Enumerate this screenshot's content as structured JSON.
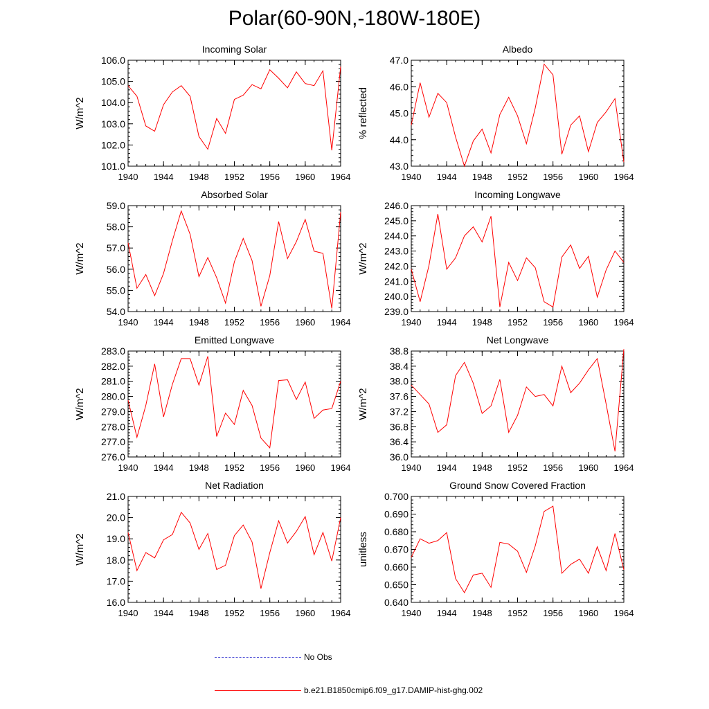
{
  "title": "Polar(60-90N,-180W-180E)",
  "colors": {
    "series": "#ff0000",
    "obs": "#5a5ad8",
    "axis": "#000000"
  },
  "legend": [
    {
      "label": "No Obs",
      "style": "dashed",
      "color": "#5a5ad8"
    },
    {
      "label": "b.e21.B1850cmip6.f09_g17.DAMIP-hist-ghg.002",
      "style": "solid",
      "color": "#ff0000"
    }
  ],
  "chart_data": [
    {
      "type": "line",
      "title": "Incoming Solar",
      "xlabel": "",
      "ylabel": "W/m^2",
      "xlim": [
        1940,
        1964
      ],
      "ylim": [
        101.0,
        106.0
      ],
      "xticks": [
        "1940",
        "1944",
        "1948",
        "1952",
        "1956",
        "1960",
        "1964"
      ],
      "yticks": [
        "101.0",
        "102.0",
        "103.0",
        "104.0",
        "105.0",
        "106.0"
      ],
      "x": [
        1940,
        1941,
        1942,
        1943,
        1944,
        1945,
        1946,
        1947,
        1948,
        1949,
        1950,
        1951,
        1952,
        1953,
        1954,
        1955,
        1956,
        1957,
        1958,
        1959,
        1960,
        1961,
        1962,
        1963,
        1964
      ],
      "series": [
        {
          "values": [
            104.8,
            104.3,
            102.9,
            102.65,
            103.9,
            104.5,
            104.8,
            104.3,
            102.4,
            101.8,
            103.25,
            102.55,
            104.15,
            104.35,
            104.85,
            104.65,
            105.55,
            105.15,
            104.7,
            105.45,
            104.9,
            104.8,
            105.5,
            101.75,
            105.7
          ]
        }
      ]
    },
    {
      "type": "line",
      "title": "Albedo",
      "xlabel": "",
      "ylabel": "% reflected",
      "xlim": [
        1940,
        1964
      ],
      "ylim": [
        43.0,
        47.0
      ],
      "xticks": [
        "1940",
        "1944",
        "1948",
        "1952",
        "1956",
        "1960",
        "1964"
      ],
      "yticks": [
        "43.0",
        "44.0",
        "45.0",
        "46.0",
        "47.0"
      ],
      "x": [
        1940,
        1941,
        1942,
        1943,
        1944,
        1945,
        1946,
        1947,
        1948,
        1949,
        1950,
        1951,
        1952,
        1953,
        1954,
        1955,
        1956,
        1957,
        1958,
        1959,
        1960,
        1961,
        1962,
        1963,
        1964
      ],
      "series": [
        {
          "values": [
            44.55,
            46.15,
            44.85,
            45.75,
            45.4,
            44.1,
            43.0,
            43.95,
            44.4,
            43.5,
            44.95,
            45.6,
            44.9,
            43.85,
            45.2,
            46.85,
            46.45,
            43.45,
            44.55,
            44.9,
            43.55,
            44.65,
            45.05,
            45.55,
            43.15
          ]
        }
      ]
    },
    {
      "type": "line",
      "title": "Absorbed Solar",
      "xlabel": "",
      "ylabel": "W/m^2",
      "xlim": [
        1940,
        1964
      ],
      "ylim": [
        54.0,
        59.0
      ],
      "xticks": [
        "1940",
        "1944",
        "1948",
        "1952",
        "1956",
        "1960",
        "1964"
      ],
      "yticks": [
        "54.0",
        "55.0",
        "56.0",
        "57.0",
        "58.0",
        "59.0"
      ],
      "x": [
        1940,
        1941,
        1942,
        1943,
        1944,
        1945,
        1946,
        1947,
        1948,
        1949,
        1950,
        1951,
        1952,
        1953,
        1954,
        1955,
        1956,
        1957,
        1958,
        1959,
        1960,
        1961,
        1962,
        1963,
        1964
      ],
      "series": [
        {
          "values": [
            57.25,
            55.1,
            55.75,
            54.75,
            55.8,
            57.35,
            58.75,
            57.65,
            55.65,
            56.55,
            55.6,
            54.4,
            56.35,
            57.45,
            56.4,
            54.25,
            55.7,
            58.25,
            56.5,
            57.3,
            58.35,
            56.85,
            56.75,
            54.15,
            58.7
          ]
        }
      ]
    },
    {
      "type": "line",
      "title": "Incoming Longwave",
      "xlabel": "",
      "ylabel": "W/m^2",
      "xlim": [
        1940,
        1964
      ],
      "ylim": [
        239.0,
        246.0
      ],
      "xticks": [
        "1940",
        "1944",
        "1948",
        "1952",
        "1956",
        "1960",
        "1964"
      ],
      "yticks": [
        "239.0",
        "240.0",
        "241.0",
        "242.0",
        "243.0",
        "244.0",
        "245.0",
        "246.0"
      ],
      "x": [
        1940,
        1941,
        1942,
        1943,
        1944,
        1945,
        1946,
        1947,
        1948,
        1949,
        1950,
        1951,
        1952,
        1953,
        1954,
        1955,
        1956,
        1957,
        1958,
        1959,
        1960,
        1961,
        1962,
        1963,
        1964
      ],
      "series": [
        {
          "values": [
            241.8,
            239.65,
            242.05,
            245.45,
            241.8,
            242.55,
            244.0,
            244.6,
            243.6,
            245.3,
            239.3,
            242.25,
            241.05,
            242.55,
            241.9,
            239.65,
            239.3,
            242.6,
            243.4,
            241.85,
            242.65,
            239.95,
            241.75,
            243.0,
            242.25
          ]
        }
      ]
    },
    {
      "type": "line",
      "title": "Emitted Longwave",
      "xlabel": "",
      "ylabel": "W/m^2",
      "xlim": [
        1940,
        1964
      ],
      "ylim": [
        276.0,
        283.0
      ],
      "xticks": [
        "1940",
        "1944",
        "1948",
        "1952",
        "1956",
        "1960",
        "1964"
      ],
      "yticks": [
        "276.0",
        "277.0",
        "278.0",
        "279.0",
        "280.0",
        "281.0",
        "282.0",
        "283.0"
      ],
      "x": [
        1940,
        1941,
        1942,
        1943,
        1944,
        1945,
        1946,
        1947,
        1948,
        1949,
        1950,
        1951,
        1952,
        1953,
        1954,
        1955,
        1956,
        1957,
        1958,
        1959,
        1960,
        1961,
        1962,
        1963,
        1964
      ],
      "series": [
        {
          "values": [
            279.75,
            277.3,
            279.4,
            282.15,
            278.65,
            280.8,
            282.5,
            282.5,
            280.75,
            282.65,
            277.35,
            278.9,
            278.15,
            280.4,
            279.4,
            277.25,
            276.6,
            281.05,
            281.1,
            279.8,
            280.95,
            278.55,
            279.1,
            279.2,
            281.0
          ]
        }
      ]
    },
    {
      "type": "line",
      "title": "Net Longwave",
      "xlabel": "",
      "ylabel": "W/m^2",
      "xlim": [
        1940,
        1964
      ],
      "ylim": [
        36.0,
        38.8
      ],
      "xticks": [
        "1940",
        "1944",
        "1948",
        "1952",
        "1956",
        "1960",
        "1964"
      ],
      "yticks": [
        "36.0",
        "36.4",
        "36.8",
        "37.2",
        "37.6",
        "38.0",
        "38.4",
        "38.8"
      ],
      "x": [
        1940,
        1941,
        1942,
        1943,
        1944,
        1945,
        1946,
        1947,
        1948,
        1949,
        1950,
        1951,
        1952,
        1953,
        1954,
        1955,
        1956,
        1957,
        1958,
        1959,
        1960,
        1961,
        1962,
        1963,
        1964
      ],
      "series": [
        {
          "values": [
            37.9,
            37.65,
            37.4,
            36.65,
            36.85,
            38.15,
            38.5,
            37.95,
            37.15,
            37.35,
            38.05,
            36.65,
            37.1,
            37.85,
            37.6,
            37.65,
            37.35,
            38.4,
            37.7,
            37.95,
            38.3,
            38.6,
            37.4,
            36.15,
            38.85
          ]
        }
      ]
    },
    {
      "type": "line",
      "title": "Net Radiation",
      "xlabel": "",
      "ylabel": "W/m^2",
      "xlim": [
        1940,
        1964
      ],
      "ylim": [
        16.0,
        21.0
      ],
      "xticks": [
        "1940",
        "1944",
        "1948",
        "1952",
        "1956",
        "1960",
        "1964"
      ],
      "yticks": [
        "16.0",
        "17.0",
        "18.0",
        "19.0",
        "20.0",
        "21.0"
      ],
      "x": [
        1940,
        1941,
        1942,
        1943,
        1944,
        1945,
        1946,
        1947,
        1948,
        1949,
        1950,
        1951,
        1952,
        1953,
        1954,
        1955,
        1956,
        1957,
        1958,
        1959,
        1960,
        1961,
        1962,
        1963,
        1964
      ],
      "series": [
        {
          "values": [
            19.3,
            17.5,
            18.35,
            18.1,
            18.95,
            19.2,
            20.25,
            19.75,
            18.5,
            19.25,
            17.55,
            17.75,
            19.15,
            19.65,
            18.85,
            16.65,
            18.35,
            19.85,
            18.8,
            19.35,
            20.05,
            18.25,
            19.3,
            17.95,
            20.0
          ]
        }
      ]
    },
    {
      "type": "line",
      "title": "Ground Snow Covered Fraction",
      "xlabel": "",
      "ylabel": "unitless",
      "xlim": [
        1940,
        1964
      ],
      "ylim": [
        0.64,
        0.7
      ],
      "xticks": [
        "1940",
        "1944",
        "1948",
        "1952",
        "1956",
        "1960",
        "1964"
      ],
      "yticks": [
        "0.640",
        "0.650",
        "0.660",
        "0.670",
        "0.680",
        "0.690",
        "0.700"
      ],
      "x": [
        1940,
        1941,
        1942,
        1943,
        1944,
        1945,
        1946,
        1947,
        1948,
        1949,
        1950,
        1951,
        1952,
        1953,
        1954,
        1955,
        1956,
        1957,
        1958,
        1959,
        1960,
        1961,
        1962,
        1963,
        1964
      ],
      "series": [
        {
          "values": [
            0.6655,
            0.676,
            0.6735,
            0.675,
            0.6795,
            0.6535,
            0.6455,
            0.6555,
            0.6565,
            0.6485,
            0.674,
            0.673,
            0.669,
            0.657,
            0.672,
            0.6915,
            0.6945,
            0.6565,
            0.6615,
            0.6645,
            0.6565,
            0.6715,
            0.658,
            0.679,
            0.6585
          ]
        }
      ]
    }
  ]
}
